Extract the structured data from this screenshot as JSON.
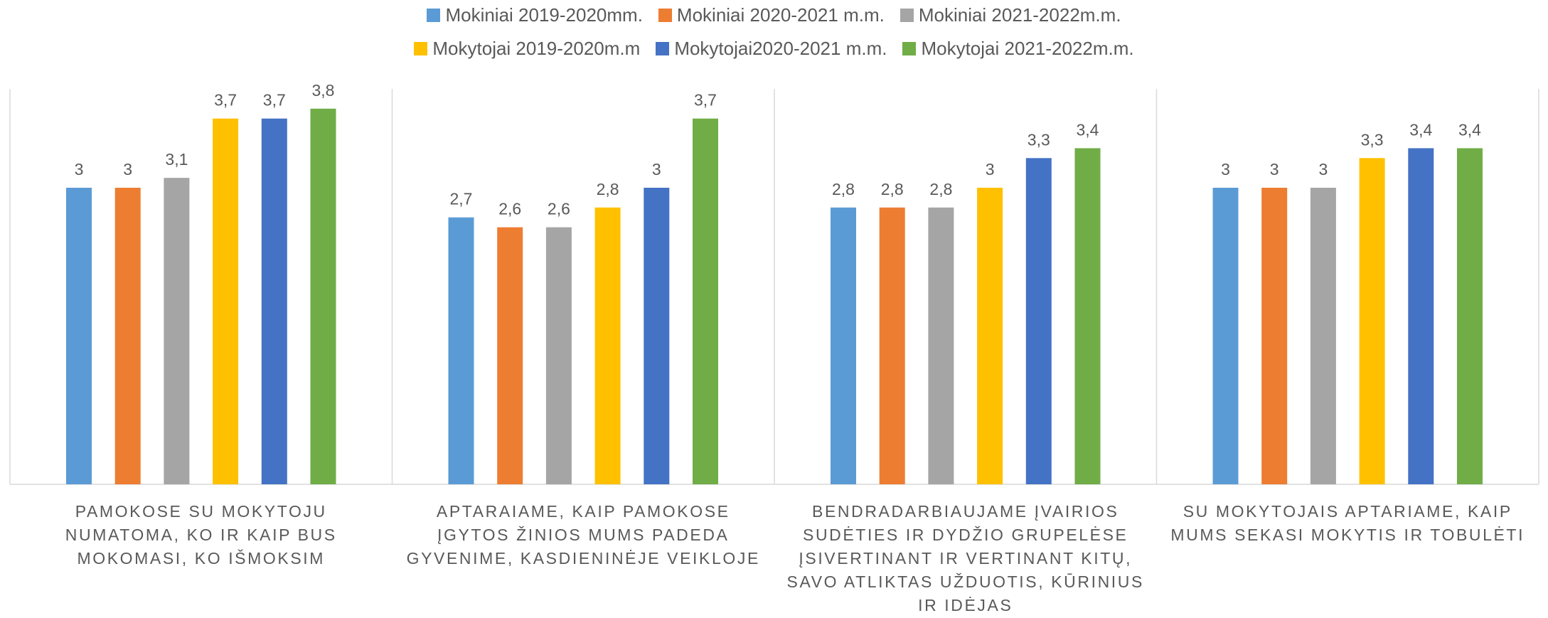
{
  "chart_data": {
    "type": "bar",
    "categories": [
      "PAMOKOSE SU MOKYTOJU NUMATOMA, KO IR KAIP BUS MOKOMASI, KO IŠMOKSIM",
      "APTARAIAME, KAIP PAMOKOSE ĮGYTOS ŽINIOS MUMS PADEDA GYVENIME, KASDIENINĖJE VEIKLOJE",
      "BENDRADARBIAUJAME ĮVAIRIOS SUDĖTIES IR DYDŽIO GRUPELĖSE ĮSIVERTINANT IR VERTINANT KITŲ, SAVO ATLIKTAS UŽDUOTIS, KŪRINIUS IR IDĖJAS",
      "SU MOKYTOJAIS APTARIAME, KAIP MUMS SEKASI MOKYTIS IR TOBULĖTI"
    ],
    "series": [
      {
        "name": "Mokiniai 2019-2020mm.",
        "color": "#5b9bd5",
        "values": [
          3,
          2.7,
          2.8,
          3
        ],
        "value_labels": [
          "3",
          "2,7",
          "2,8",
          "3"
        ]
      },
      {
        "name": "Mokiniai 2020-2021 m.m.",
        "color": "#ed7d31",
        "values": [
          3,
          2.6,
          2.8,
          3
        ],
        "value_labels": [
          "3",
          "2,6",
          "2,8",
          "3"
        ]
      },
      {
        "name": "Mokiniai 2021-2022m.m.",
        "color": "#a5a5a5",
        "values": [
          3.1,
          2.6,
          2.8,
          3
        ],
        "value_labels": [
          "3,1",
          "2,6",
          "2,8",
          "3"
        ]
      },
      {
        "name": "Mokytojai 2019-2020m.m",
        "color": "#ffc000",
        "values": [
          3.7,
          2.8,
          3,
          3.3
        ],
        "value_labels": [
          "3,7",
          "2,8",
          "3",
          "3,3"
        ]
      },
      {
        "name": "Mokytojai2020-2021 m.m.",
        "color": "#4472c4",
        "values": [
          3.7,
          3,
          3.3,
          3.4
        ],
        "value_labels": [
          "3,7",
          "3",
          "3,3",
          "3,4"
        ]
      },
      {
        "name": "Mokytojai 2021-2022m.m.",
        "color": "#70ad47",
        "values": [
          3.8,
          3.7,
          3.4,
          3.4
        ],
        "value_labels": [
          "3,8",
          "3,7",
          "3,4",
          "3,4"
        ]
      }
    ],
    "ylim": [
      0,
      4
    ]
  }
}
